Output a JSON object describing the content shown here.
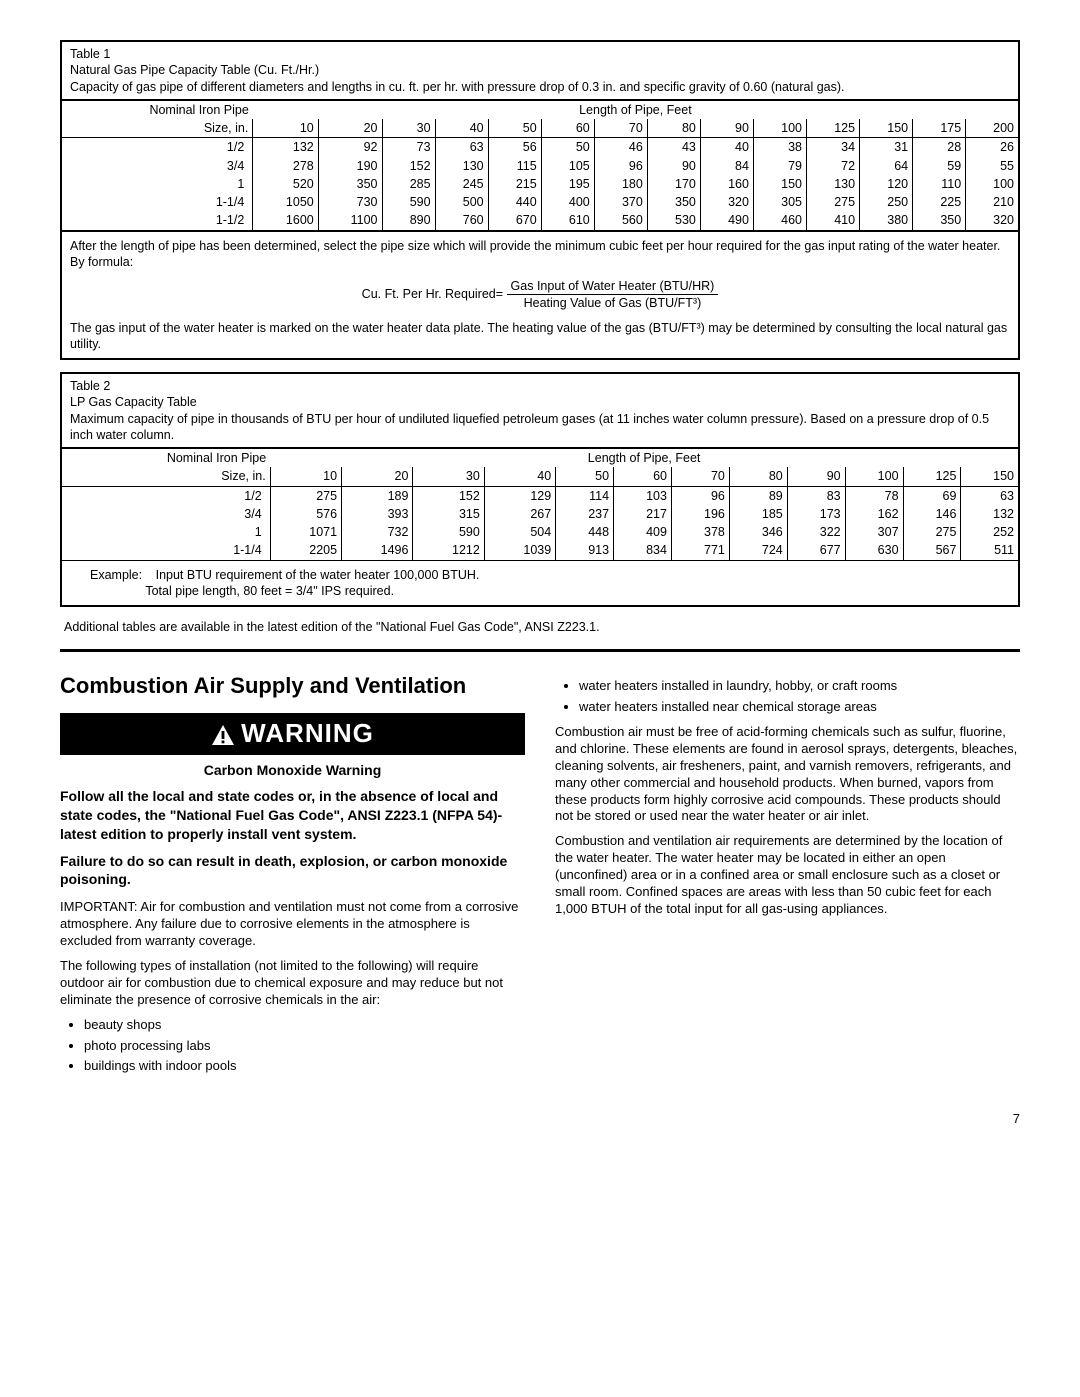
{
  "table1": {
    "label": "Table 1",
    "title": "Natural Gas Pipe Capacity Table (Cu. Ft./Hr.)",
    "caption": "Capacity of gas pipe of different diameters and lengths in cu. ft. per hr. with pressure drop of 0.3 in. and specific gravity of 0.60 (natural gas).",
    "row_hdr1": "Nominal Iron Pipe",
    "row_hdr2": "Size, in.",
    "col_hdr": "Length of Pipe, Feet",
    "lengths": [
      "10",
      "20",
      "30",
      "40",
      "50",
      "60",
      "70",
      "80",
      "90",
      "100",
      "125",
      "150",
      "175",
      "200"
    ],
    "sizes": [
      "1/2",
      "3/4",
      "1",
      "1-1/4",
      "1-1/2"
    ],
    "data": [
      [
        "132",
        "92",
        "73",
        "63",
        "56",
        "50",
        "46",
        "43",
        "40",
        "38",
        "34",
        "31",
        "28",
        "26"
      ],
      [
        "278",
        "190",
        "152",
        "130",
        "115",
        "105",
        "96",
        "90",
        "84",
        "79",
        "72",
        "64",
        "59",
        "55"
      ],
      [
        "520",
        "350",
        "285",
        "245",
        "215",
        "195",
        "180",
        "170",
        "160",
        "150",
        "130",
        "120",
        "110",
        "100"
      ],
      [
        "1050",
        "730",
        "590",
        "500",
        "440",
        "400",
        "370",
        "350",
        "320",
        "305",
        "275",
        "250",
        "225",
        "210"
      ],
      [
        "1600",
        "1100",
        "890",
        "760",
        "670",
        "610",
        "560",
        "530",
        "490",
        "460",
        "410",
        "380",
        "350",
        "320"
      ]
    ],
    "note1": "After the length of pipe has been determined, select the pipe size which will provide the minimum cubic feet per hour required for the gas input rating of the water heater. By formula:",
    "formula_lhs": "Cu. Ft. Per Hr. Required=",
    "formula_num": "Gas Input of Water Heater (BTU/HR)",
    "formula_den": "Heating Value of Gas (BTU/FT³)",
    "note2": "The gas input of the water heater is marked on the water heater data plate. The heating value of the gas (BTU/FT³) may be determined by consulting the local natural gas utility."
  },
  "table2": {
    "label": "Table 2",
    "title": "LP Gas Capacity Table",
    "caption": "Maximum capacity of pipe in thousands of BTU per hour of undiluted liquefied petroleum gases (at 11 inches water column pressure). Based on a pressure drop of 0.5 inch water column.",
    "row_hdr1": "Nominal Iron Pipe",
    "row_hdr2": "Size, in.",
    "col_hdr": "Length of Pipe, Feet",
    "lengths": [
      "10",
      "20",
      "30",
      "40",
      "50",
      "60",
      "70",
      "80",
      "90",
      "100",
      "125",
      "150"
    ],
    "sizes": [
      "1/2",
      "3/4",
      "1",
      "1-1/4"
    ],
    "data": [
      [
        "275",
        "189",
        "152",
        "129",
        "114",
        "103",
        "96",
        "89",
        "83",
        "78",
        "69",
        "63"
      ],
      [
        "576",
        "393",
        "315",
        "267",
        "237",
        "217",
        "196",
        "185",
        "173",
        "162",
        "146",
        "132"
      ],
      [
        "1071",
        "732",
        "590",
        "504",
        "448",
        "409",
        "378",
        "346",
        "322",
        "307",
        "275",
        "252"
      ],
      [
        "2205",
        "1496",
        "1212",
        "1039",
        "913",
        "834",
        "771",
        "724",
        "677",
        "630",
        "567",
        "511"
      ]
    ],
    "example_label": "Example:",
    "example_line1": "Input BTU requirement of the water heater 100,000 BTUH.",
    "example_line2": "Total pipe length, 80 feet = 3/4\" IPS required."
  },
  "extra_note": "Additional tables are available in the latest edition of the \"National Fuel Gas Code\", ANSI Z223.1.",
  "section_heading": "Combustion Air Supply and Ventilation",
  "warning": {
    "header": "WARNING",
    "sub": "Carbon Monoxide Warning",
    "p1": "Follow all the local and state codes or, in the absence of local and state codes, the \"National Fuel Gas Code\", ANSI Z223.1 (NFPA 54)- latest edition to properly install vent system.",
    "p2": "Failure to do so can result in death, explosion, or carbon monoxide poisoning."
  },
  "left": {
    "important": "IMPORTANT:  Air for combustion and ventilation must not come from a corrosive atmosphere. Any failure due to corrosive elements in the atmosphere is excluded from warranty coverage.",
    "p2": "The following types of installation (not limited to the following) will require outdoor air for combustion due to chemical exposure and may reduce but not eliminate the presence of corrosive chemicals in the air:",
    "bullets": [
      "beauty shops",
      "photo processing labs",
      "buildings with indoor pools"
    ]
  },
  "right": {
    "bullets": [
      "water heaters installed in laundry, hobby, or craft rooms",
      "water heaters installed near chemical storage areas"
    ],
    "p1": "Combustion air must be free of acid-forming chemicals such as sulfur, fluorine, and chlorine. These elements are found in aerosol sprays, detergents, bleaches, cleaning solvents, air fresheners, paint, and varnish removers, refrigerants, and many other commercial and household products. When burned, vapors from these products form highly corrosive acid compounds. These products should not be stored or used near the water heater or air inlet.",
    "p2": "Combustion and ventilation air requirements are determined by the location of the water heater. The water heater may be located in either an open (unconfined) area or in a confined area or small enclosure such as a closet or small room. Confined spaces are areas with less than 50 cubic feet for each 1,000 BTUH of the total input for all gas-using appliances."
  },
  "page": "7"
}
